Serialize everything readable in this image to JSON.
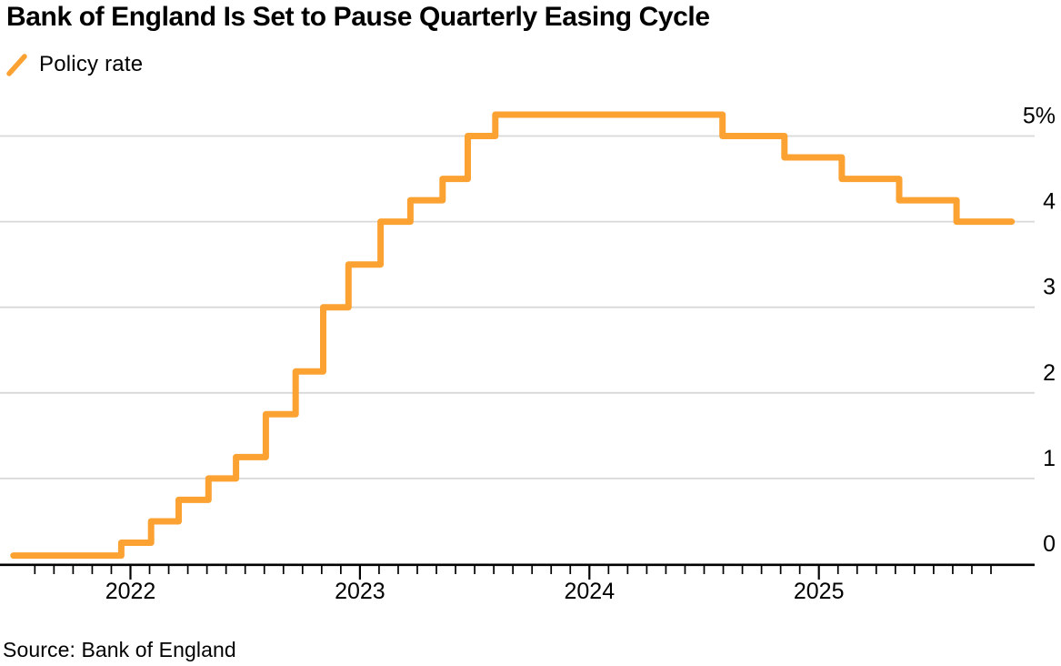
{
  "footer": {
    "source": "Source: Bank of England"
  },
  "chart_data": {
    "type": "line",
    "variant": "step-after",
    "title": "Bank of England Is Set to Pause Quarterly Easing Cycle",
    "legend_position": "top-left",
    "grid": "horizontal",
    "style": {
      "line_color": "#FBA233",
      "grid_color": "#D8D8D8",
      "axis_color": "#000000",
      "text_color": "#000000",
      "background": "#FFFFFF"
    },
    "series": [
      {
        "name": "Policy rate",
        "unit": "%",
        "color": "#FBA233",
        "start": {
          "x": 2021.49,
          "rate": 0.1
        },
        "steps": [
          {
            "date": "Dec 2021",
            "x": 2021.96,
            "rate": 0.25
          },
          {
            "date": "Feb 2022",
            "x": 2022.09,
            "rate": 0.5
          },
          {
            "date": "Mar 2022",
            "x": 2022.21,
            "rate": 0.75
          },
          {
            "date": "May 2022",
            "x": 2022.34,
            "rate": 1.0
          },
          {
            "date": "Jun 2022",
            "x": 2022.46,
            "rate": 1.25
          },
          {
            "date": "Aug 2022",
            "x": 2022.59,
            "rate": 1.75
          },
          {
            "date": "Sep 2022",
            "x": 2022.72,
            "rate": 2.25
          },
          {
            "date": "Nov 2022",
            "x": 2022.84,
            "rate": 3.0
          },
          {
            "date": "Dec 2022",
            "x": 2022.95,
            "rate": 3.5
          },
          {
            "date": "Feb 2023",
            "x": 2023.09,
            "rate": 4.0
          },
          {
            "date": "Mar 2023",
            "x": 2023.22,
            "rate": 4.25
          },
          {
            "date": "May 2023",
            "x": 2023.36,
            "rate": 4.5
          },
          {
            "date": "Jun 2023",
            "x": 2023.47,
            "rate": 5.0
          },
          {
            "date": "Aug 2023",
            "x": 2023.59,
            "rate": 5.25
          },
          {
            "date": "Aug 2024",
            "x": 2024.58,
            "rate": 5.0
          },
          {
            "date": "Nov 2024",
            "x": 2024.85,
            "rate": 4.75
          },
          {
            "date": "Feb 2025",
            "x": 2025.1,
            "rate": 4.5
          },
          {
            "date": "May 2025",
            "x": 2025.35,
            "rate": 4.25
          },
          {
            "date": "Aug 2025",
            "x": 2025.6,
            "rate": 4.0
          }
        ],
        "end_x": 2025.84
      }
    ],
    "x_axis": {
      "year_labels": [
        "2022",
        "2023",
        "2024",
        "2025"
      ],
      "tick_interval": "monthly",
      "range": [
        2021.5833,
        2025.75
      ]
    },
    "y_axis": {
      "side": "right",
      "ticks": [
        0,
        1,
        2,
        3,
        4,
        5
      ],
      "tick_labels": [
        "0",
        "1",
        "2",
        "3",
        "4",
        "5%"
      ],
      "range": [
        0,
        5.5
      ]
    }
  }
}
